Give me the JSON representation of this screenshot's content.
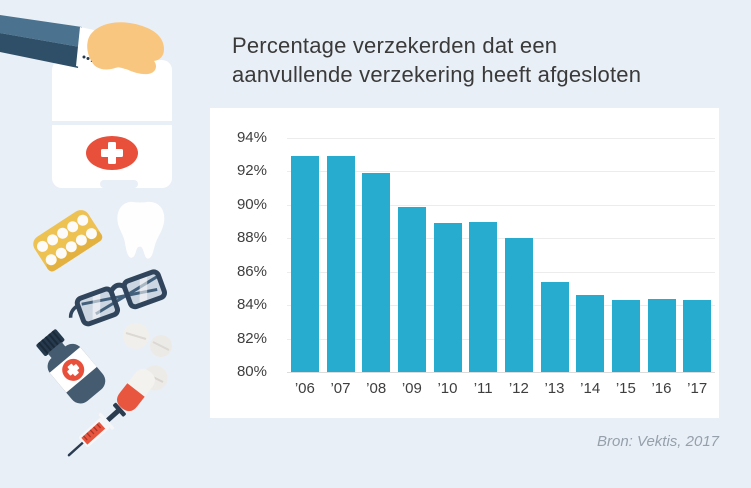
{
  "header": {
    "line1": "Percentage verzekerden dat een",
    "line2": "aanvullende verzekering heeft afgesloten"
  },
  "source": {
    "label": "Bron: Vektis, 2017"
  },
  "colors": {
    "background": "#e9eff6",
    "panel": "#ffffff",
    "bar": "#27abce",
    "grid": "#ececec",
    "title_text": "#3a3a3a",
    "axis_text": "#3e3e3e",
    "source_text": "#95a0ab",
    "accent_red": "#e8503c",
    "navy": "#2b3c50",
    "slate_sleeve": "#4b7390",
    "skin": "#f9c67f",
    "blister_yellow": "#eec153"
  },
  "chart_data": {
    "type": "bar",
    "categories": [
      "’06",
      "’07",
      "’08",
      "’09",
      "’10",
      "’11",
      "’12",
      "’13",
      "’14",
      "’15",
      "’16",
      "’17"
    ],
    "values": [
      92.9,
      92.9,
      91.9,
      89.9,
      88.9,
      89.0,
      88.0,
      85.4,
      84.6,
      84.3,
      84.4,
      84.3
    ],
    "title": "Percentage verzekerden dat een aanvullende verzekering heeft afgesloten",
    "xlabel": "",
    "ylabel": "",
    "ylim": [
      80,
      94
    ],
    "ytick_step": 2,
    "ytick_suffix": "%",
    "grid": true,
    "legend": "none"
  },
  "illustrations": {
    "items": [
      "arm-sleeve",
      "hand",
      "first-aid-kit",
      "kit-handle",
      "red-cross-emblem",
      "pill-blister",
      "tooth",
      "glasses",
      "tablet",
      "tablet",
      "medicine-bottle",
      "capsule",
      "syringe"
    ]
  }
}
